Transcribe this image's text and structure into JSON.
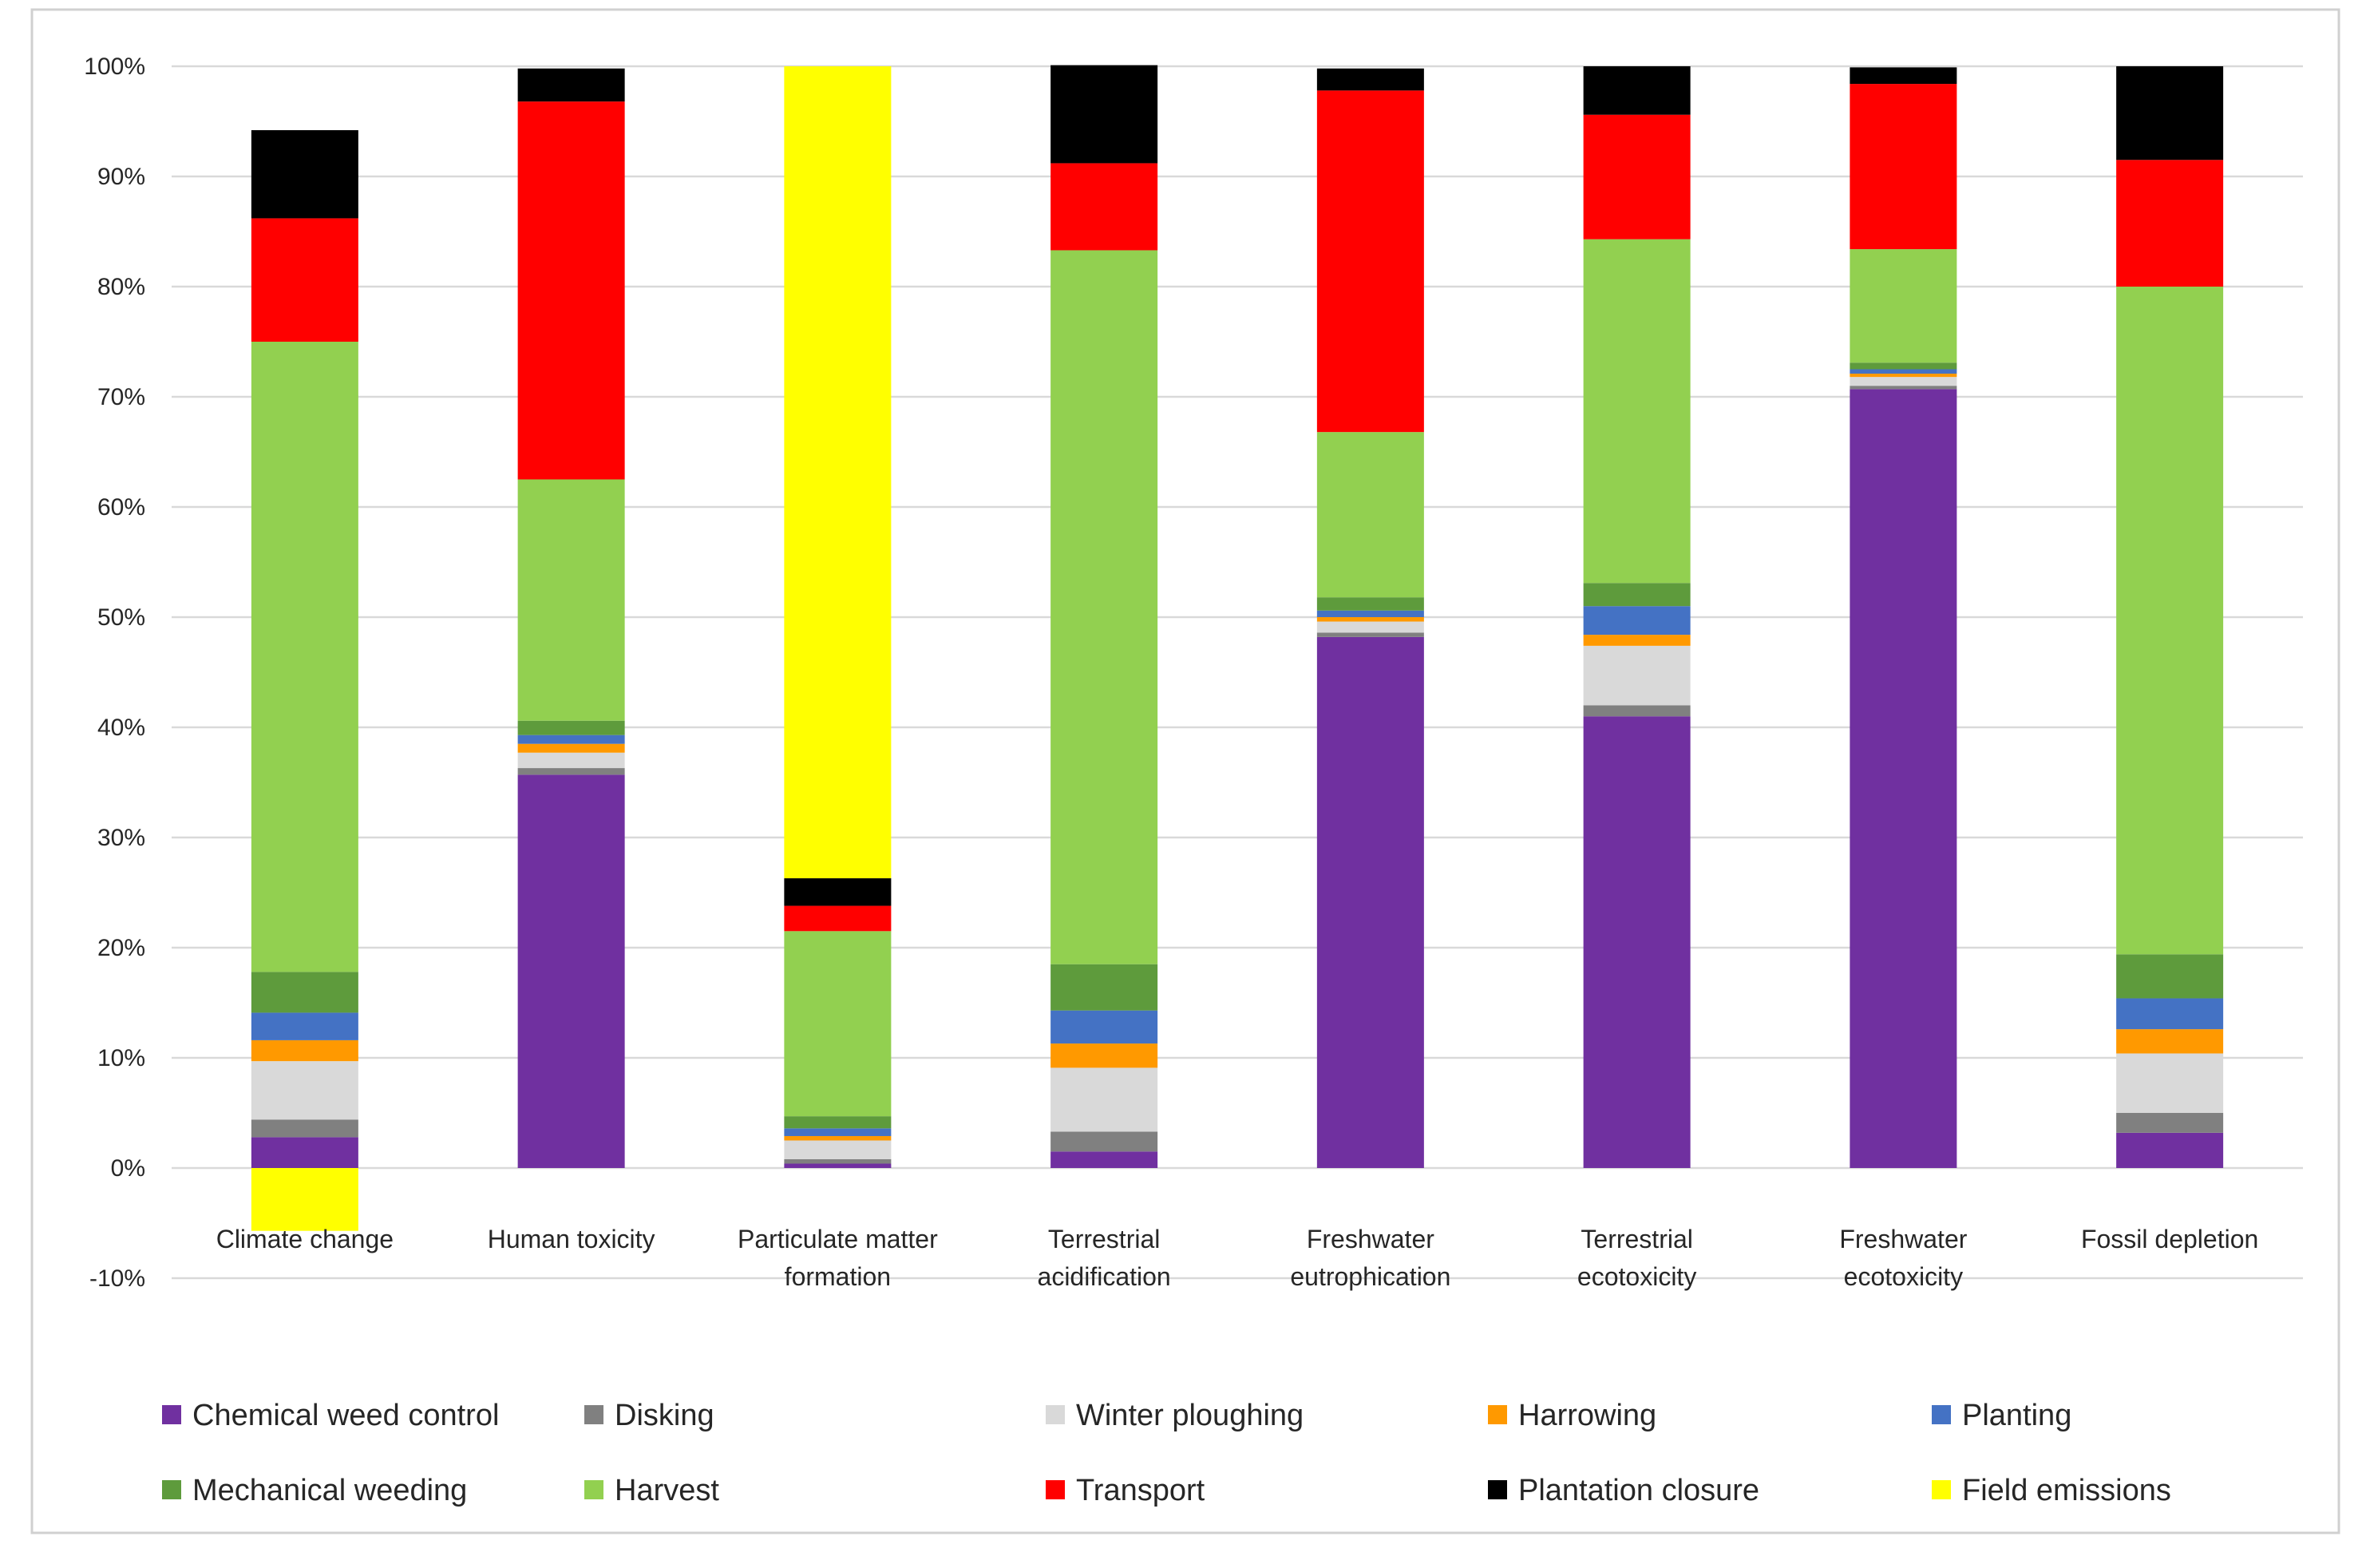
{
  "chart_data": {
    "type": "bar",
    "stacked": true,
    "title": "",
    "xlabel": "",
    "ylabel": "",
    "ylim": [
      -0.1,
      1.0
    ],
    "yticks": [
      -0.1,
      0,
      0.1,
      0.2,
      0.3,
      0.4,
      0.5,
      0.6,
      0.7,
      0.8,
      0.9,
      1.0
    ],
    "ytick_labels": [
      "-10%",
      "0%",
      "10%",
      "20%",
      "30%",
      "40%",
      "50%",
      "60%",
      "70%",
      "80%",
      "90%",
      "100%"
    ],
    "grid": true,
    "legend_position": "bottom",
    "categories": [
      [
        "Climate change"
      ],
      [
        "Human toxicity"
      ],
      [
        "Particulate matter",
        "formation"
      ],
      [
        "Terrestrial",
        "acidification"
      ],
      [
        "Freshwater",
        "eutrophication"
      ],
      [
        "Terrestrial",
        "ecotoxicity"
      ],
      [
        "Freshwater",
        "ecotoxicity"
      ],
      [
        "Fossil depletion"
      ]
    ],
    "series": [
      {
        "name": "Chemical weed control",
        "color": "#7030A0",
        "values": [
          0.028,
          0.357,
          0.004,
          0.015,
          0.482,
          0.41,
          0.707,
          0.032
        ]
      },
      {
        "name": "Disking",
        "color": "#808080",
        "values": [
          0.016,
          0.006,
          0.004,
          0.018,
          0.004,
          0.01,
          0.003,
          0.018
        ]
      },
      {
        "name": "Winter ploughing",
        "color": "#D9D9D9",
        "values": [
          0.053,
          0.014,
          0.017,
          0.058,
          0.01,
          0.054,
          0.008,
          0.054
        ]
      },
      {
        "name": "Harrowing",
        "color": "#FF9900",
        "values": [
          0.019,
          0.008,
          0.004,
          0.022,
          0.004,
          0.01,
          0.003,
          0.022
        ]
      },
      {
        "name": "Planting",
        "color": "#4472C4",
        "values": [
          0.025,
          0.008,
          0.007,
          0.03,
          0.006,
          0.026,
          0.004,
          0.028
        ]
      },
      {
        "name": "Mechanical weeding",
        "color": "#5E9B3C",
        "values": [
          0.037,
          0.013,
          0.011,
          0.042,
          0.012,
          0.021,
          0.006,
          0.04
        ]
      },
      {
        "name": "Harvest",
        "color": "#92D050",
        "values": [
          0.572,
          0.219,
          0.168,
          0.648,
          0.15,
          0.312,
          0.103,
          0.606
        ]
      },
      {
        "name": "Transport",
        "color": "#FF0000",
        "values": [
          0.112,
          0.343,
          0.023,
          0.079,
          0.31,
          0.113,
          0.15,
          0.115
        ]
      },
      {
        "name": "Plantation closure",
        "color": "#000000",
        "values": [
          0.08,
          0.03,
          0.025,
          0.089,
          0.02,
          0.044,
          0.015,
          0.085
        ]
      },
      {
        "name": "Field emissions",
        "color": "#FFFF00",
        "values": [
          -0.057,
          0.0,
          0.737,
          0.0,
          0.0,
          0.0,
          0.0,
          0.0
        ]
      }
    ]
  }
}
